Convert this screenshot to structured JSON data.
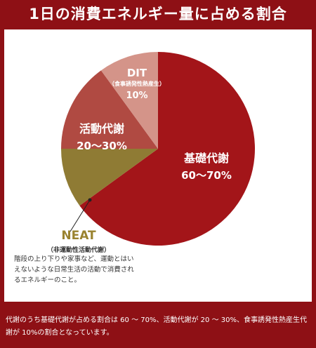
{
  "title": "1日の消費エネルギー量に占める割合",
  "chart_data": {
    "type": "pie",
    "slices": [
      {
        "label": "基礎代謝",
        "range": "60〜70%",
        "value": 65,
        "color": "#a31519"
      },
      {
        "label": "NEAT",
        "sublabel": "（非運動性活動代謝）",
        "value": 10,
        "color": "#8f7b34"
      },
      {
        "label": "活動代謝",
        "range": "20〜30%",
        "value": 15,
        "color": "#b04a42"
      },
      {
        "label": "DIT",
        "sublabel": "（食事誘発性熱産生）",
        "range": "10%",
        "value": 10,
        "color": "#d49489"
      }
    ]
  },
  "neat_note": {
    "title": "NEAT",
    "subtitle": "（非運動性活動代謝）",
    "description": "階段の上り下りや家事など、運動とはいえないような日常生活の活動で消費されるエネルギーのこと。"
  },
  "footer_text": "代謝のうち基礎代謝が占める割合は 60 〜 70%、活動代謝が 20 〜 30%、食事誘発性熱産生代謝が 10%の割合となっています。",
  "colors": {
    "background": "#8e1015",
    "panel": "#ffffff",
    "neat_text": "#9a8330"
  }
}
